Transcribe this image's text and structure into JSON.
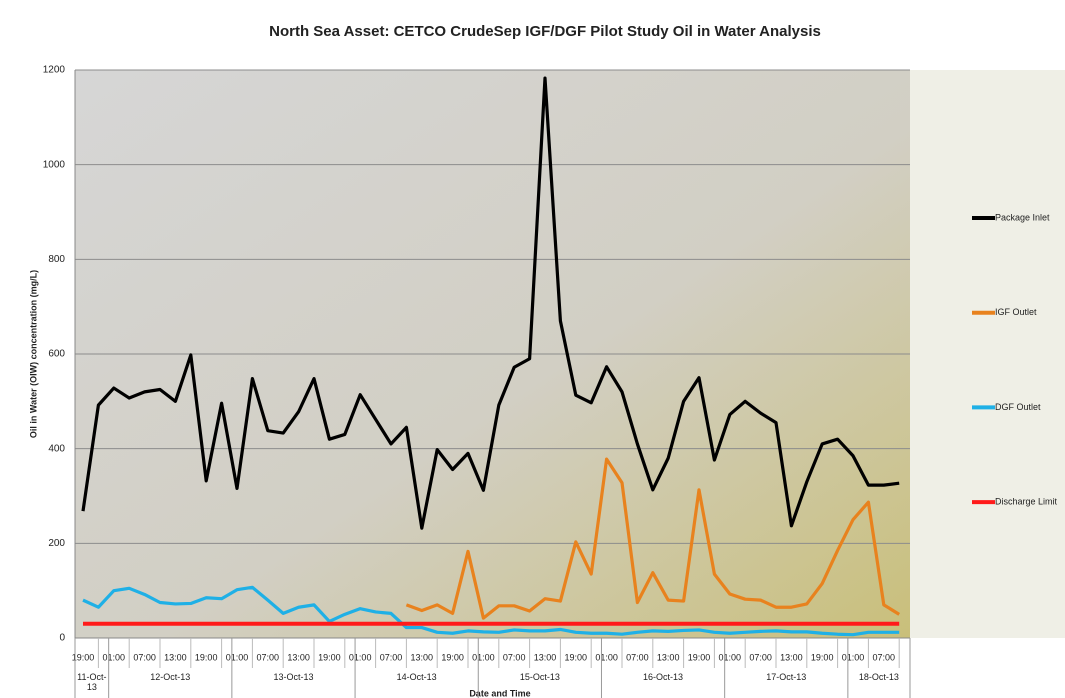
{
  "chart_data": {
    "type": "line",
    "title": "North Sea Asset: CETCO CrudeSep IGF/DGF  Pilot Study Oil in Water Analysis",
    "y_label": "Oil in Water (OIW) concentration (mg/L)",
    "x_label": "Date and Time",
    "categories": [
      "19:00",
      null,
      "01:00",
      null,
      "07:00",
      null,
      "13:00",
      null,
      "19:00",
      null,
      "01:00",
      null,
      "07:00",
      null,
      "13:00",
      null,
      "19:00",
      null,
      "01:00",
      null,
      "07:00",
      null,
      "13:00",
      null,
      "19:00",
      null,
      "01:00",
      null,
      "07:00",
      null,
      "13:00",
      null,
      "19:00",
      null,
      "01:00",
      null,
      "07:00",
      null,
      "13:00",
      null,
      "19:00",
      null,
      "01:00",
      null,
      "07:00",
      null,
      "13:00",
      null,
      "19:00",
      null,
      "01:00",
      null,
      "07:00",
      null
    ],
    "date_groups": [
      "11-Oct-13",
      "12-Oct-13",
      "13-Oct-13",
      "14-Oct-13",
      "15-Oct-13",
      "16-Oct-13",
      "17-Oct-13",
      "18-Oct-13"
    ],
    "series": [
      {
        "name": "Package Inlet",
        "color": "#000000",
        "values": [
          268,
          492,
          528,
          507,
          520,
          525,
          500,
          598,
          332,
          496,
          316,
          548,
          438,
          433,
          478,
          548,
          420,
          430,
          514,
          462,
          410,
          445,
          232,
          398,
          356,
          390,
          312,
          492,
          572,
          590,
          1183,
          670,
          513,
          497,
          573,
          520,
          410,
          313,
          380,
          500,
          550,
          376,
          472,
          500,
          475,
          455,
          237,
          330,
          410,
          420,
          385,
          323,
          323,
          327
        ]
      },
      {
        "name": "IGF Outlet",
        "color": "#e8821e",
        "values": [
          null,
          null,
          null,
          null,
          null,
          null,
          null,
          null,
          null,
          null,
          null,
          null,
          null,
          null,
          null,
          null,
          null,
          null,
          null,
          null,
          null,
          70,
          58,
          70,
          52,
          183,
          42,
          68,
          68,
          57,
          83,
          78,
          203,
          135,
          378,
          328,
          75,
          138,
          80,
          78,
          313,
          135,
          93,
          82,
          80,
          65,
          65,
          72,
          115,
          185,
          250,
          287,
          70,
          50
        ]
      },
      {
        "name": "DGF Outlet",
        "color": "#1fb0e6",
        "values": [
          80,
          65,
          100,
          105,
          92,
          75,
          72,
          73,
          85,
          83,
          102,
          107,
          80,
          52,
          65,
          70,
          35,
          50,
          62,
          55,
          52,
          22,
          22,
          12,
          10,
          15,
          13,
          12,
          17,
          15,
          15,
          18,
          12,
          10,
          10,
          8,
          12,
          15,
          14,
          16,
          17,
          12,
          10,
          12,
          14,
          15,
          13,
          13,
          10,
          8,
          7,
          12,
          12,
          12
        ]
      },
      {
        "name": "Discharge Limit",
        "color": "#ff1a1a",
        "values": [
          30,
          30,
          30,
          30,
          30,
          30,
          30,
          30,
          30,
          30,
          30,
          30,
          30,
          30,
          30,
          30,
          30,
          30,
          30,
          30,
          30,
          30,
          30,
          30,
          30,
          30,
          30,
          30,
          30,
          30,
          30,
          30,
          30,
          30,
          30,
          30,
          30,
          30,
          30,
          30,
          30,
          30,
          30,
          30,
          30,
          30,
          30,
          30,
          30,
          30,
          30,
          30,
          30,
          30
        ]
      }
    ],
    "ylim": [
      0,
      1200
    ],
    "yticks": [
      0,
      200,
      400,
      600,
      800,
      1000,
      1200
    ],
    "grid": true,
    "legend": "right"
  }
}
